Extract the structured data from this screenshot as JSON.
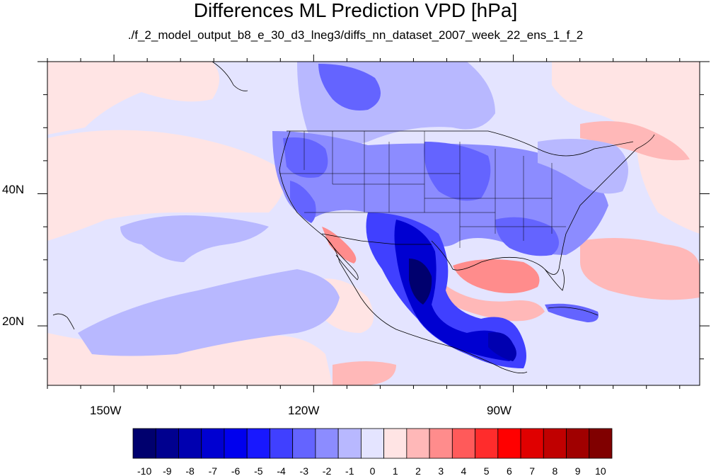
{
  "title": "Differences ML Prediction VPD [hPa]",
  "subtitle": "./f_2_model_output_b8_e_30_d3_lneg3/diffs_nn_dataset_2007_week_22_ens_1_f_2",
  "lat_ticks": [
    "40N",
    "20N"
  ],
  "lon_ticks": [
    "150W",
    "120W",
    "90W"
  ],
  "colorbar": {
    "labels": [
      "-10",
      "-9",
      "-8",
      "-7",
      "-6",
      "-5",
      "-4",
      "-3",
      "-2",
      "-1",
      "0",
      "1",
      "2",
      "3",
      "4",
      "5",
      "6",
      "7",
      "8",
      "9",
      "10"
    ],
    "colors": [
      "#00006e",
      "#00008f",
      "#0000b0",
      "#0000d1",
      "#0000ee",
      "#1818ff",
      "#4040ff",
      "#6464ff",
      "#8c8cff",
      "#b8b8ff",
      "#e4e4ff",
      "#ffe4e4",
      "#ffb8b8",
      "#ff8c8c",
      "#ff5a5a",
      "#ff2c2c",
      "#ff0000",
      "#e00000",
      "#c00000",
      "#a00000",
      "#800000"
    ]
  },
  "map": {
    "lon_range": [
      -160,
      -62
    ],
    "lat_range": [
      11,
      60
    ],
    "coastline_color": "#000000"
  }
}
